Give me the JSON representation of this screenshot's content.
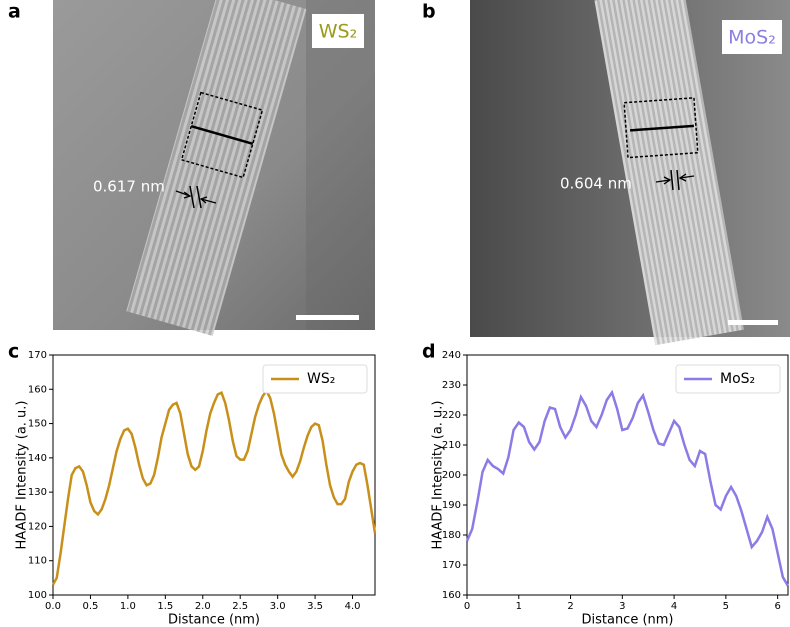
{
  "panels": {
    "a": "a",
    "b": "b",
    "c": "c",
    "d": "d"
  },
  "images": [
    {
      "label": "WS₂",
      "spacing": "0.617 nm"
    },
    {
      "label": "MoS₂",
      "spacing": "0.604 nm"
    }
  ],
  "chart_data": [
    {
      "type": "line",
      "xlabel": "Distance (nm)",
      "ylabel": "HAADF Intensity (a. u.)",
      "xlim": [
        0,
        4.3
      ],
      "ylim": [
        100,
        170
      ],
      "xticks": [
        {
          "value": 0,
          "label": "0.0"
        },
        0.5,
        {
          "value": 1,
          "label": "1.0"
        },
        1.5,
        {
          "value": 2,
          "label": "2.0"
        },
        2.5,
        {
          "value": 3,
          "label": "3.0"
        },
        3.5,
        {
          "value": 4,
          "label": "4.0"
        }
      ],
      "yticks": [
        100,
        110,
        120,
        130,
        140,
        150,
        160,
        170
      ],
      "legend": "upper right",
      "x": [
        0,
        0.05,
        0.1,
        0.15,
        0.2,
        0.25,
        0.3,
        0.35,
        0.4,
        0.45,
        0.5,
        0.55,
        0.6,
        0.65,
        0.7,
        0.75,
        0.8,
        0.85,
        0.9,
        0.95,
        1.0,
        1.05,
        1.1,
        1.15,
        1.2,
        1.25,
        1.3,
        1.35,
        1.4,
        1.45,
        1.5,
        1.55,
        1.6,
        1.65,
        1.7,
        1.75,
        1.8,
        1.85,
        1.9,
        1.95,
        2.0,
        2.05,
        2.1,
        2.15,
        2.2,
        2.25,
        2.3,
        2.35,
        2.4,
        2.45,
        2.5,
        2.55,
        2.6,
        2.65,
        2.7,
        2.75,
        2.8,
        2.85,
        2.9,
        2.95,
        3.0,
        3.05,
        3.1,
        3.15,
        3.2,
        3.25,
        3.3,
        3.35,
        3.4,
        3.45,
        3.5,
        3.55,
        3.6,
        3.65,
        3.7,
        3.75,
        3.8,
        3.85,
        3.9,
        3.95,
        4.0,
        4.05,
        4.1,
        4.15,
        4.2,
        4.25,
        4.3
      ],
      "series": [
        {
          "name": "WS₂",
          "color": "#c8901a",
          "values": [
            103,
            105,
            112,
            120,
            128,
            135,
            137,
            137.5,
            136,
            132,
            127,
            124.5,
            123.5,
            125,
            128,
            132,
            137,
            142,
            145.5,
            148,
            148.5,
            147,
            143,
            138,
            134,
            132,
            132.5,
            135,
            140,
            146,
            150,
            154,
            155.5,
            156,
            153,
            147,
            141,
            137.5,
            136.5,
            137.5,
            142,
            148,
            153,
            156,
            158.5,
            159,
            156,
            151,
            145,
            140.5,
            139.5,
            139.5,
            142,
            147,
            152,
            155.5,
            158,
            159.5,
            157.5,
            153,
            147,
            141,
            138,
            136,
            134.5,
            136,
            139,
            143,
            146.5,
            149,
            150,
            149.5,
            145,
            138,
            132,
            128.5,
            126.5,
            126.5,
            128,
            133,
            136,
            138,
            138.5,
            138,
            132,
            125,
            118
          ]
        }
      ]
    },
    {
      "type": "line",
      "xlabel": "Distance (nm)",
      "ylabel": "HAADF Intensity (a. u.)",
      "xlim": [
        0,
        6.2
      ],
      "ylim": [
        160,
        240
      ],
      "xticks": [
        0,
        1,
        2,
        3,
        4,
        5,
        6
      ],
      "yticks": [
        160,
        170,
        180,
        190,
        200,
        210,
        220,
        230,
        240
      ],
      "legend": "upper right",
      "x": [
        0,
        0.1,
        0.2,
        0.3,
        0.4,
        0.5,
        0.6,
        0.7,
        0.8,
        0.9,
        1.0,
        1.1,
        1.2,
        1.3,
        1.4,
        1.5,
        1.6,
        1.7,
        1.8,
        1.9,
        2.0,
        2.1,
        2.2,
        2.3,
        2.4,
        2.5,
        2.6,
        2.7,
        2.8,
        2.9,
        3.0,
        3.1,
        3.2,
        3.3,
        3.4,
        3.5,
        3.6,
        3.7,
        3.8,
        3.9,
        4.0,
        4.1,
        4.2,
        4.3,
        4.4,
        4.5,
        4.6,
        4.7,
        4.8,
        4.9,
        5.0,
        5.1,
        5.2,
        5.3,
        5.4,
        5.5,
        5.6,
        5.7,
        5.8,
        5.9,
        6.0,
        6.1,
        6.2
      ],
      "series": [
        {
          "name": "MoS₂",
          "color": "#8c7ae6",
          "values": [
            178,
            182,
            191,
            201,
            205,
            203,
            202,
            200.5,
            206,
            215,
            217.5,
            216,
            211,
            208.5,
            211,
            218,
            222.5,
            222,
            216,
            212.5,
            215,
            220,
            226,
            223,
            218,
            216,
            220,
            225,
            227.5,
            222,
            215,
            215.5,
            219,
            224,
            226.5,
            221,
            215,
            210.5,
            210,
            214,
            218,
            216,
            210,
            205,
            203,
            208,
            207,
            198,
            190,
            188.5,
            193,
            196,
            193,
            188,
            182,
            176,
            178,
            181,
            186,
            182,
            174,
            166,
            163
          ]
        }
      ]
    }
  ]
}
